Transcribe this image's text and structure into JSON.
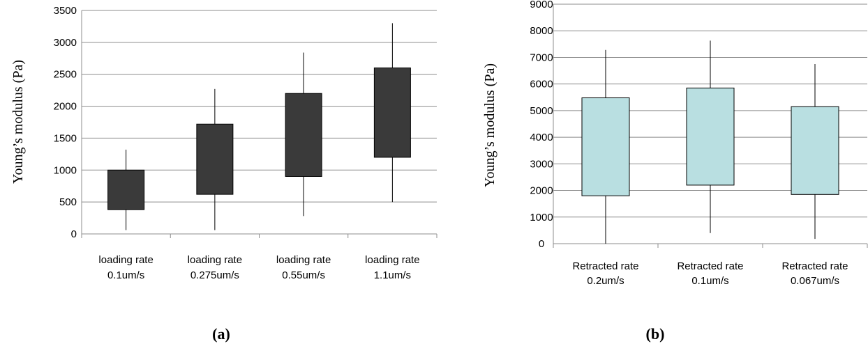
{
  "chart_data": [
    {
      "type": "box",
      "panel_label": "(a)",
      "ylabel": "Young’s modulus (Pa)",
      "ylim": [
        0,
        3500
      ],
      "y_ticks": [
        0,
        500,
        1000,
        1500,
        2000,
        2500,
        3000,
        3500
      ],
      "grid": true,
      "box_color": "#3a3a3a",
      "categories": [
        [
          "loading rate",
          "0.1um/s"
        ],
        [
          "loading rate",
          "0.275um/s"
        ],
        [
          "loading rate",
          "0.55um/s"
        ],
        [
          "loading rate",
          "1.1um/s"
        ]
      ],
      "boxes": [
        {
          "min": 60,
          "q1": 380,
          "q3": 1000,
          "max": 1320
        },
        {
          "min": 60,
          "q1": 620,
          "q3": 1720,
          "max": 2270
        },
        {
          "min": 280,
          "q1": 900,
          "q3": 2200,
          "max": 2840
        },
        {
          "min": 500,
          "q1": 1200,
          "q3": 2600,
          "max": 3300
        }
      ]
    },
    {
      "type": "box",
      "panel_label": "(b)",
      "ylabel": "Young’s modulus (Pa)",
      "ylim": [
        0,
        9000
      ],
      "y_ticks": [
        0,
        1000,
        2000,
        3000,
        4000,
        5000,
        6000,
        7000,
        8000,
        9000
      ],
      "grid": true,
      "box_color": "#b9dfe1",
      "categories": [
        [
          "Retracted rate",
          "0.2um/s"
        ],
        [
          "Retracted rate",
          "0.1um/s"
        ],
        [
          "Retracted rate",
          "0.067um/s"
        ]
      ],
      "boxes": [
        {
          "min": 0,
          "q1": 1800,
          "q3": 5480,
          "max": 7280
        },
        {
          "min": 400,
          "q1": 2200,
          "q3": 5850,
          "max": 7630
        },
        {
          "min": 180,
          "q1": 1850,
          "q3": 5150,
          "max": 6750
        }
      ]
    }
  ]
}
